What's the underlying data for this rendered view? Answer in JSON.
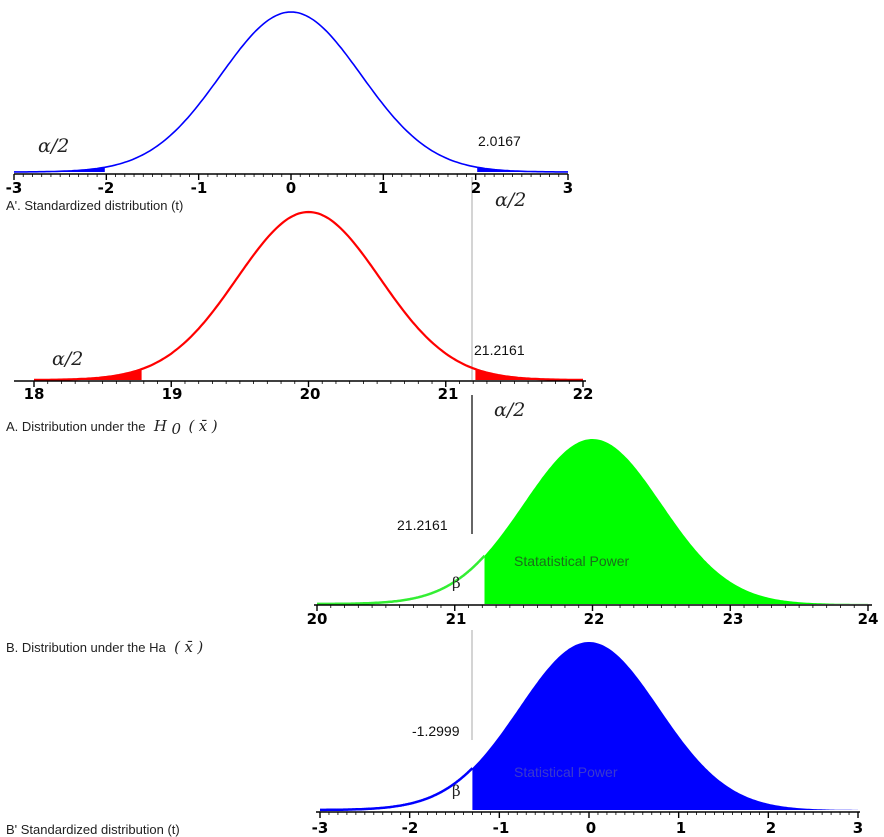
{
  "chart_data": [
    {
      "type": "area",
      "id": "A_prime",
      "label": "A'. Standardized distribution (t)",
      "color": "#0000ff",
      "curve": "t distribution, mean 0",
      "xlim": [
        -3,
        3
      ],
      "ticks": [
        "-3",
        "-2",
        "-1",
        "0",
        "1",
        "2",
        "3"
      ],
      "critical_values": [
        -2.0167,
        2.0167
      ],
      "critical_label": "2.0167",
      "shaded_tails": [
        "left",
        "right"
      ],
      "tail_label_left": "α/2",
      "tail_label_right": "α/2"
    },
    {
      "type": "area",
      "id": "A",
      "label_prefix": "A. Distribution under the",
      "label_hypothesis": "H",
      "label_subscript": "0",
      "label_stat": "x̄",
      "color": "#ff0000",
      "curve": "normal, mean 20",
      "mean": 20,
      "xlim": [
        18,
        22
      ],
      "ticks": [
        "18",
        "19",
        "20",
        "21",
        "22"
      ],
      "critical_values": [
        18.7839,
        21.2161
      ],
      "critical_label": "21.2161",
      "shaded_tails": [
        "left",
        "right"
      ],
      "tail_label_left": "α/2",
      "tail_label_right": "α/2"
    },
    {
      "type": "area",
      "id": "B",
      "label_prefix": "B. Distribution under the Ha",
      "label_stat": "x̄",
      "color": "#00ff00",
      "curve": "normal, mean 22",
      "mean": 22,
      "xlim": [
        20,
        24
      ],
      "ticks": [
        "20",
        "21",
        "22",
        "23",
        "24"
      ],
      "critical_value": 21.2161,
      "critical_label": "21.2161",
      "beta_label": "β",
      "power_label": "Statatistical Power",
      "power_label_color": "#1a6e1a"
    },
    {
      "type": "area",
      "id": "B_prime",
      "label": "B' Standardized distribution (t)",
      "color": "#0000ff",
      "curve": "t distribution, mean 0",
      "xlim": [
        -3,
        3
      ],
      "ticks": [
        "-3",
        "-2",
        "-1",
        "0",
        "1",
        "2",
        "3"
      ],
      "critical_value": -1.2999,
      "critical_label": "-1.2999",
      "beta_label": "β",
      "power_label": "Statistical Power",
      "power_label_color": "#3a3acd"
    }
  ]
}
